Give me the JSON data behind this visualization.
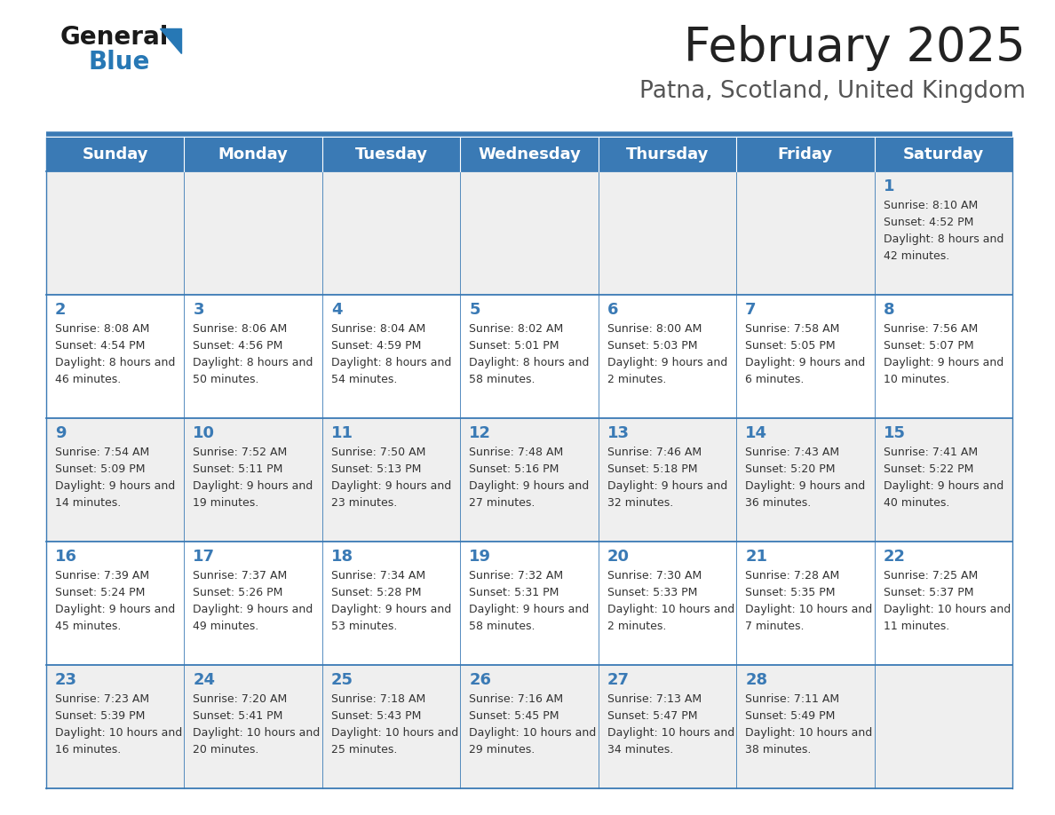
{
  "title": "February 2025",
  "subtitle": "Patna, Scotland, United Kingdom",
  "days_of_week": [
    "Sunday",
    "Monday",
    "Tuesday",
    "Wednesday",
    "Thursday",
    "Friday",
    "Saturday"
  ],
  "header_bg": "#3a7ab5",
  "header_text": "#ffffff",
  "row_bg_even": "#efefef",
  "row_bg_odd": "#ffffff",
  "border_color": "#3a7ab5",
  "date_color": "#3a7ab5",
  "info_color": "#333333",
  "title_color": "#222222",
  "subtitle_color": "#555555",
  "logo_general_color": "#1a1a1a",
  "logo_blue_color": "#2778b5",
  "weeks": [
    {
      "days": [
        {
          "date": "",
          "sunrise": "",
          "sunset": "",
          "daylight": ""
        },
        {
          "date": "",
          "sunrise": "",
          "sunset": "",
          "daylight": ""
        },
        {
          "date": "",
          "sunrise": "",
          "sunset": "",
          "daylight": ""
        },
        {
          "date": "",
          "sunrise": "",
          "sunset": "",
          "daylight": ""
        },
        {
          "date": "",
          "sunrise": "",
          "sunset": "",
          "daylight": ""
        },
        {
          "date": "",
          "sunrise": "",
          "sunset": "",
          "daylight": ""
        },
        {
          "date": "1",
          "sunrise": "8:10 AM",
          "sunset": "4:52 PM",
          "daylight": "8 hours and 42 minutes."
        }
      ]
    },
    {
      "days": [
        {
          "date": "2",
          "sunrise": "8:08 AM",
          "sunset": "4:54 PM",
          "daylight": "8 hours and 46 minutes."
        },
        {
          "date": "3",
          "sunrise": "8:06 AM",
          "sunset": "4:56 PM",
          "daylight": "8 hours and 50 minutes."
        },
        {
          "date": "4",
          "sunrise": "8:04 AM",
          "sunset": "4:59 PM",
          "daylight": "8 hours and 54 minutes."
        },
        {
          "date": "5",
          "sunrise": "8:02 AM",
          "sunset": "5:01 PM",
          "daylight": "8 hours and 58 minutes."
        },
        {
          "date": "6",
          "sunrise": "8:00 AM",
          "sunset": "5:03 PM",
          "daylight": "9 hours and 2 minutes."
        },
        {
          "date": "7",
          "sunrise": "7:58 AM",
          "sunset": "5:05 PM",
          "daylight": "9 hours and 6 minutes."
        },
        {
          "date": "8",
          "sunrise": "7:56 AM",
          "sunset": "5:07 PM",
          "daylight": "9 hours and 10 minutes."
        }
      ]
    },
    {
      "days": [
        {
          "date": "9",
          "sunrise": "7:54 AM",
          "sunset": "5:09 PM",
          "daylight": "9 hours and 14 minutes."
        },
        {
          "date": "10",
          "sunrise": "7:52 AM",
          "sunset": "5:11 PM",
          "daylight": "9 hours and 19 minutes."
        },
        {
          "date": "11",
          "sunrise": "7:50 AM",
          "sunset": "5:13 PM",
          "daylight": "9 hours and 23 minutes."
        },
        {
          "date": "12",
          "sunrise": "7:48 AM",
          "sunset": "5:16 PM",
          "daylight": "9 hours and 27 minutes."
        },
        {
          "date": "13",
          "sunrise": "7:46 AM",
          "sunset": "5:18 PM",
          "daylight": "9 hours and 32 minutes."
        },
        {
          "date": "14",
          "sunrise": "7:43 AM",
          "sunset": "5:20 PM",
          "daylight": "9 hours and 36 minutes."
        },
        {
          "date": "15",
          "sunrise": "7:41 AM",
          "sunset": "5:22 PM",
          "daylight": "9 hours and 40 minutes."
        }
      ]
    },
    {
      "days": [
        {
          "date": "16",
          "sunrise": "7:39 AM",
          "sunset": "5:24 PM",
          "daylight": "9 hours and 45 minutes."
        },
        {
          "date": "17",
          "sunrise": "7:37 AM",
          "sunset": "5:26 PM",
          "daylight": "9 hours and 49 minutes."
        },
        {
          "date": "18",
          "sunrise": "7:34 AM",
          "sunset": "5:28 PM",
          "daylight": "9 hours and 53 minutes."
        },
        {
          "date": "19",
          "sunrise": "7:32 AM",
          "sunset": "5:31 PM",
          "daylight": "9 hours and 58 minutes."
        },
        {
          "date": "20",
          "sunrise": "7:30 AM",
          "sunset": "5:33 PM",
          "daylight": "10 hours and 2 minutes."
        },
        {
          "date": "21",
          "sunrise": "7:28 AM",
          "sunset": "5:35 PM",
          "daylight": "10 hours and 7 minutes."
        },
        {
          "date": "22",
          "sunrise": "7:25 AM",
          "sunset": "5:37 PM",
          "daylight": "10 hours and 11 minutes."
        }
      ]
    },
    {
      "days": [
        {
          "date": "23",
          "sunrise": "7:23 AM",
          "sunset": "5:39 PM",
          "daylight": "10 hours and 16 minutes."
        },
        {
          "date": "24",
          "sunrise": "7:20 AM",
          "sunset": "5:41 PM",
          "daylight": "10 hours and 20 minutes."
        },
        {
          "date": "25",
          "sunrise": "7:18 AM",
          "sunset": "5:43 PM",
          "daylight": "10 hours and 25 minutes."
        },
        {
          "date": "26",
          "sunrise": "7:16 AM",
          "sunset": "5:45 PM",
          "daylight": "10 hours and 29 minutes."
        },
        {
          "date": "27",
          "sunrise": "7:13 AM",
          "sunset": "5:47 PM",
          "daylight": "10 hours and 34 minutes."
        },
        {
          "date": "28",
          "sunrise": "7:11 AM",
          "sunset": "5:49 PM",
          "daylight": "10 hours and 38 minutes."
        },
        {
          "date": "",
          "sunrise": "",
          "sunset": "",
          "daylight": ""
        }
      ]
    }
  ]
}
